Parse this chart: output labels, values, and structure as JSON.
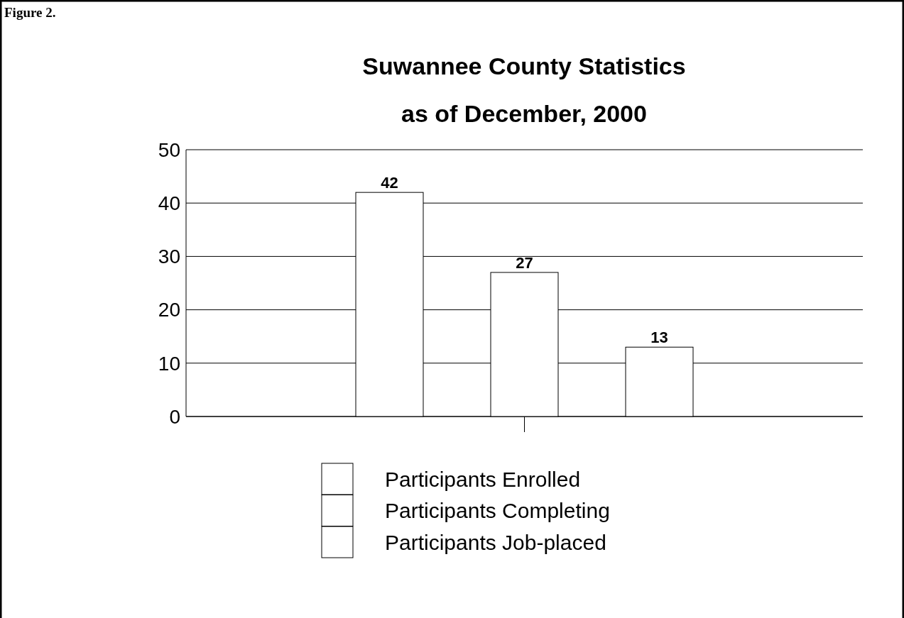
{
  "chart_data": {
    "type": "bar",
    "title": "Suwannee County Statistics",
    "subtitle": "as of December, 2000",
    "annotations": [
      "Figure 2."
    ],
    "categories": [
      null
    ],
    "series": [
      {
        "name": "Participants Enrolled",
        "color": "#ffffff",
        "values": [
          42
        ]
      },
      {
        "name": "Participants Completing",
        "color": "#ffffff",
        "values": [
          27
        ]
      },
      {
        "name": "Participants Job-placed",
        "color": "#ffffff",
        "values": [
          13
        ]
      }
    ],
    "ylim": [
      0,
      50
    ],
    "yticks": [
      0,
      10,
      20,
      30,
      40,
      50
    ],
    "grid": "y",
    "legend": "bottom",
    "data_labels": true
  }
}
